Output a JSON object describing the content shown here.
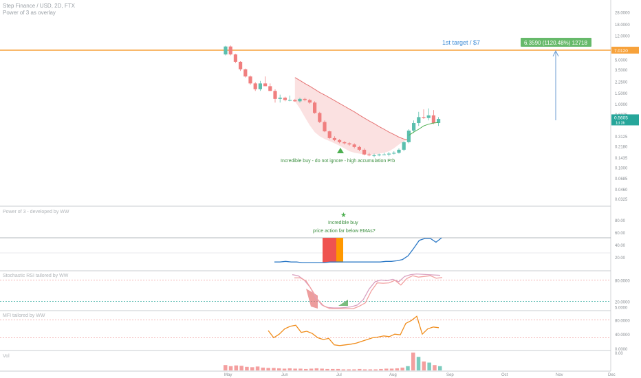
{
  "header": {
    "symbol_line": "Step Finance / USD, 2D, FTX",
    "overlay_line": "Power of 3 as overlay"
  },
  "panes": {
    "power_of_3": "Power of 3 - developed by WW",
    "stoch_rsi": "Stochastic RSI tailored by WW",
    "mfi": "MFI tailored by WW",
    "vol": "Vol"
  },
  "annotations": {
    "target": "1st target / $7",
    "target_box": "6.3590 (1120.48%) 12718",
    "buy_note": "Incredible buy - do not ignore - high accumulation Prb",
    "p3_line1": "Incredible buy",
    "p3_line2": "price action far below EMAs?"
  },
  "colors": {
    "up": "#5bbfae",
    "down": "#f07f7f",
    "orange_line": "#f7a23b",
    "accent_green": "#4caf50",
    "teal_label": "#26a69a",
    "blue_line": "#2b78c6"
  },
  "chart_data": [
    {
      "type": "candlestick",
      "title": "Step Finance / USD, 2D, FTX",
      "y_scale": "log",
      "ylim": [
        0.03,
        32
      ],
      "y_ticks": [
        "28.0000",
        "18.0000",
        "12.0000",
        "7.0120",
        "5.0000",
        "3.5000",
        "2.2500",
        "1.5000",
        "1.0000",
        "0.6875",
        "0.5605",
        "0.3125",
        "0.2180",
        "0.1435",
        "0.1000",
        "0.0685",
        "0.0460",
        "0.0325"
      ],
      "x_ticks": [
        "May",
        "Jun",
        "Jul",
        "Aug",
        "Sep",
        "Oct",
        "Nov",
        "Dec"
      ],
      "horizontal_line": 7.012,
      "last_price": "0.5605",
      "last_price_sub": "1d 3h",
      "candles": [
        [
          6.0,
          8.2,
          5.8,
          8.0
        ],
        [
          8.0,
          8.3,
          5.8,
          6.0
        ],
        [
          6.0,
          6.1,
          4.4,
          4.6
        ],
        [
          4.6,
          4.7,
          3.3,
          3.5
        ],
        [
          3.5,
          3.6,
          2.6,
          2.7
        ],
        [
          2.7,
          2.8,
          2.0,
          2.1
        ],
        [
          2.1,
          2.2,
          1.6,
          1.7
        ],
        [
          1.7,
          2.3,
          1.6,
          2.1
        ],
        [
          2.1,
          2.7,
          1.9,
          1.9
        ],
        [
          1.9,
          2.1,
          1.6,
          1.6
        ],
        [
          1.6,
          1.7,
          1.05,
          1.2
        ],
        [
          1.2,
          1.4,
          1.05,
          1.25
        ],
        [
          1.25,
          1.3,
          1.1,
          1.15
        ],
        [
          1.15,
          1.35,
          1.1,
          1.15
        ],
        [
          1.15,
          1.2,
          1.08,
          1.1
        ],
        [
          1.1,
          1.25,
          1.05,
          1.2
        ],
        [
          1.2,
          1.25,
          1.1,
          1.15
        ],
        [
          1.15,
          1.2,
          1.0,
          1.05
        ],
        [
          1.05,
          1.1,
          0.7,
          0.72
        ],
        [
          0.72,
          0.75,
          0.5,
          0.52
        ],
        [
          0.52,
          0.55,
          0.36,
          0.37
        ],
        [
          0.37,
          0.38,
          0.28,
          0.29
        ],
        [
          0.29,
          0.31,
          0.26,
          0.27
        ],
        [
          0.27,
          0.28,
          0.24,
          0.25
        ],
        [
          0.25,
          0.26,
          0.23,
          0.24
        ],
        [
          0.24,
          0.25,
          0.22,
          0.23
        ],
        [
          0.23,
          0.24,
          0.2,
          0.21
        ],
        [
          0.21,
          0.22,
          0.18,
          0.19
        ],
        [
          0.19,
          0.2,
          0.155,
          0.16
        ],
        [
          0.16,
          0.17,
          0.15,
          0.155
        ],
        [
          0.155,
          0.165,
          0.145,
          0.155
        ],
        [
          0.155,
          0.165,
          0.15,
          0.16
        ],
        [
          0.16,
          0.17,
          0.155,
          0.16
        ],
        [
          0.16,
          0.175,
          0.15,
          0.165
        ],
        [
          0.165,
          0.18,
          0.16,
          0.17
        ],
        [
          0.17,
          0.2,
          0.165,
          0.19
        ],
        [
          0.19,
          0.26,
          0.18,
          0.25
        ],
        [
          0.25,
          0.4,
          0.24,
          0.38
        ],
        [
          0.38,
          0.55,
          0.35,
          0.5
        ],
        [
          0.5,
          0.75,
          0.45,
          0.62
        ],
        [
          0.62,
          0.82,
          0.58,
          0.6
        ],
        [
          0.6,
          0.85,
          0.55,
          0.66
        ],
        [
          0.66,
          0.8,
          0.48,
          0.5
        ],
        [
          0.5,
          0.62,
          0.45,
          0.58
        ]
      ],
      "ema_band": [
        2.6,
        2.35,
        2.1,
        1.9,
        1.7,
        1.52,
        1.38,
        1.25,
        1.13,
        1.02,
        0.92,
        0.83,
        0.75,
        0.67,
        0.6,
        0.54,
        0.49,
        0.44,
        0.4,
        0.36,
        0.33,
        0.3,
        0.28,
        0.27
      ],
      "ema_low": [
        1.1,
        0.85,
        0.62,
        0.46,
        0.36,
        0.31,
        0.28,
        0.26,
        0.24,
        0.22,
        0.2,
        0.18,
        0.17,
        0.165,
        0.16,
        0.16,
        0.16,
        0.165,
        0.17,
        0.18,
        0.2,
        0.23,
        0.26,
        0.27
      ],
      "green_ema": [
        0.32,
        0.36,
        0.4,
        0.45,
        0.48,
        0.5,
        0.51
      ]
    },
    {
      "type": "line",
      "title": "Power of 3 - developed by WW",
      "ylim": [
        0,
        100
      ],
      "y_ticks": [
        "80.00",
        "60.00",
        "40.00",
        "20.00"
      ],
      "values": [
        12,
        12,
        13,
        12,
        12,
        11,
        11,
        11,
        11,
        11,
        12,
        12,
        12,
        12,
        12,
        12,
        12,
        12,
        12,
        12,
        13,
        13,
        14,
        16,
        22,
        34,
        47,
        50,
        50,
        44,
        51
      ]
    },
    {
      "type": "line",
      "title": "Stochastic RSI tailored by WW",
      "ylim": [
        0,
        100
      ],
      "y_ticks": [
        "80.0000",
        "20.0000",
        "5.0000"
      ],
      "values": [
        95,
        92,
        80,
        60,
        30,
        10,
        3,
        2,
        2,
        3,
        5,
        10,
        25,
        55,
        75,
        80,
        78,
        82,
        75,
        90,
        95,
        97,
        96,
        95,
        94,
        93
      ]
    },
    {
      "type": "line",
      "title": "MFI tailored by WW",
      "ylim": [
        0,
        100
      ],
      "y_ticks": [
        "80.0000",
        "40.0000",
        "0.0000"
      ],
      "values": [
        50,
        30,
        40,
        55,
        62,
        65,
        45,
        48,
        42,
        30,
        25,
        28,
        10,
        8,
        10,
        12,
        15,
        20,
        25,
        30,
        32,
        35,
        33,
        40,
        38,
        70,
        78,
        90,
        40,
        55,
        60,
        58
      ]
    },
    {
      "type": "bar",
      "title": "Vol",
      "y_ticks": [
        "0.00"
      ],
      "values": [
        1.5,
        1.2,
        1.4,
        1.3,
        1.0,
        0.9,
        1.1,
        0.8,
        0.7,
        0.7,
        0.6,
        0.5,
        0.6,
        0.5,
        0.5,
        0.4,
        0.5,
        0.6,
        0.5,
        0.4,
        0.4,
        0.4,
        0.3,
        0.3,
        0.3,
        0.4,
        0.3,
        0.3,
        0.3,
        0.4,
        0.5,
        0.5,
        0.6,
        0.8,
        1.2,
        5.0,
        3.8,
        2.5,
        2.2,
        1.5,
        1.2
      ]
    }
  ]
}
